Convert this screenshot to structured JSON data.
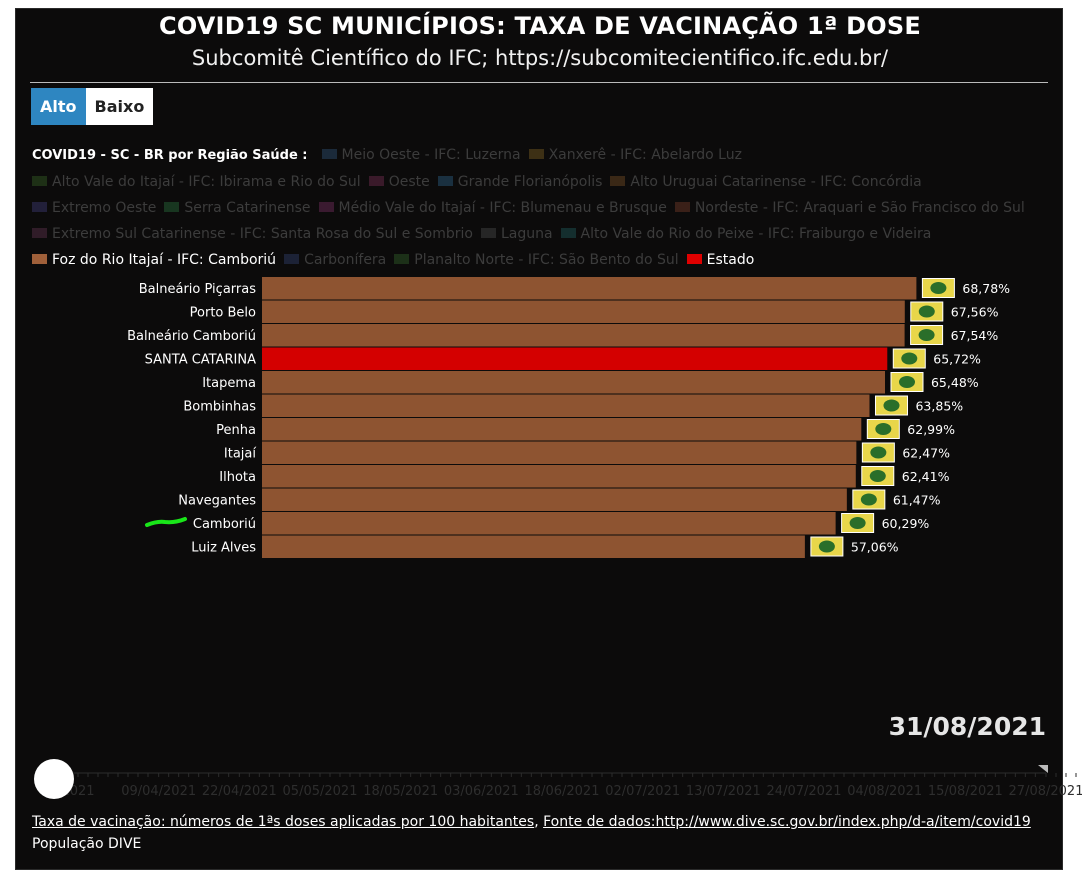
{
  "header": {
    "title": "COVID19 SC MUNICÍPIOS: TAXA DE VACINAÇÃO 1ª DOSE",
    "subtitle": "Subcomitê Científico do IFC; https://subcomitecientifico.ifc.edu.br/"
  },
  "toggle": {
    "alto": "Alto",
    "baixo": "Baixo"
  },
  "legend": {
    "title": "COVID19 - SC - BR por Região Saúde :",
    "items": [
      {
        "label": "Meio Oeste - IFC: Luzerna",
        "color": "#1b2a3a",
        "active": false
      },
      {
        "label": "Xanxerê - IFC: Abelardo Luz",
        "color": "#3d3015",
        "active": false
      },
      {
        "label": "Alto Vale do Itajaí  - IFC: Ibirama e Rio do Sul",
        "color": "#1e3016",
        "active": false
      },
      {
        "label": "Oeste",
        "color": "#3a1a2a",
        "active": false
      },
      {
        "label": "Grande Florianópolis",
        "color": "#1a3040",
        "active": false
      },
      {
        "label": "Alto Uruguai Catarinense - IFC: Concórdia",
        "color": "#3a2816",
        "active": false
      },
      {
        "label": "Extremo Oeste",
        "color": "#22203a",
        "active": false
      },
      {
        "label": "Serra Catarinense",
        "color": "#183620",
        "active": false
      },
      {
        "label": "Médio Vale do Itajaí - IFC: Blumenau e Brusque",
        "color": "#3a1a30",
        "active": false
      },
      {
        "label": "Nordeste - IFC: Araquari e São Francisco do Sul",
        "color": "#3a2018",
        "active": false
      },
      {
        "label": "Extremo Sul Catarinense - IFC: Santa Rosa do Sul e Sombrio",
        "color": "#301c28",
        "active": false
      },
      {
        "label": "Laguna",
        "color": "#262626",
        "active": false
      },
      {
        "label": "Alto Vale do Rio do Peixe - IFC: Fraiburgo e Videira",
        "color": "#142e2e",
        "active": false
      },
      {
        "label": "Foz do Rio Itajaí - IFC: Camboriú",
        "color": "#a0603a",
        "active": true
      },
      {
        "label": "Carbonífera",
        "color": "#1c2236",
        "active": false
      },
      {
        "label": "Planalto Norte - IFC: São Bento do Sul",
        "color": "#1c3018",
        "active": false
      },
      {
        "label": "Estado",
        "color": "#e00000",
        "active": true
      }
    ]
  },
  "chart_data": {
    "type": "bar",
    "orientation": "horizontal",
    "categories": [
      "Balneário Piçarras",
      "Porto Belo",
      "Balneário Camboriú",
      "SANTA CATARINA",
      "Itapema",
      "Bombinhas",
      "Penha",
      "Itajaí",
      "Ilhota",
      "Navegantes",
      "Camboriú",
      "Luiz Alves"
    ],
    "values": [
      68.78,
      67.56,
      67.54,
      65.72,
      65.48,
      63.85,
      62.99,
      62.47,
      62.41,
      61.47,
      60.29,
      57.06
    ],
    "value_labels": [
      "68,78%",
      "67,56%",
      "67,54%",
      "65,72%",
      "65,48%",
      "63,85%",
      "62,99%",
      "62,47%",
      "62,41%",
      "61,47%",
      "60,29%",
      "57,06%"
    ],
    "groups": [
      "Foz do Rio Itajaí - IFC: Camboriú",
      "Foz do Rio Itajaí - IFC: Camboriú",
      "Foz do Rio Itajaí - IFC: Camboriú",
      "Estado",
      "Foz do Rio Itajaí - IFC: Camboriú",
      "Foz do Rio Itajaí - IFC: Camboriú",
      "Foz do Rio Itajaí - IFC: Camboriú",
      "Foz do Rio Itajaí - IFC: Camboriú",
      "Foz do Rio Itajaí - IFC: Camboriú",
      "Foz do Rio Itajaí - IFC: Camboriú",
      "Foz do Rio Itajaí - IFC: Camboriú",
      "Foz do Rio Itajaí - IFC: Camboriú"
    ],
    "colors": {
      "Foz do Rio Itajaí - IFC: Camboriú": "#8e5431",
      "Estado": "#d40000"
    },
    "xlim": [
      0,
      70
    ],
    "highlight": "Camboriú",
    "highlight_color": "#19e619"
  },
  "date_label": "31/08/2021",
  "timeline": {
    "ticks": [
      "2021",
      "09/04/2021",
      "22/04/2021",
      "05/05/2021",
      "18/05/2021",
      "03/06/2021",
      "18/06/2021",
      "02/07/2021",
      "13/07/2021",
      "24/07/2021",
      "04/08/2021",
      "15/08/2021",
      "27/08/2021"
    ],
    "position": 1.0
  },
  "footer": {
    "link1": "Taxa de vacinação: números de 1ªs doses aplicadas por 100 habitantes",
    "separator": ", ",
    "link2": "Fonte de dados:http://www.dive.sc.gov.br/index.php/d-a/item/covid19",
    "line2": "População DIVE"
  }
}
